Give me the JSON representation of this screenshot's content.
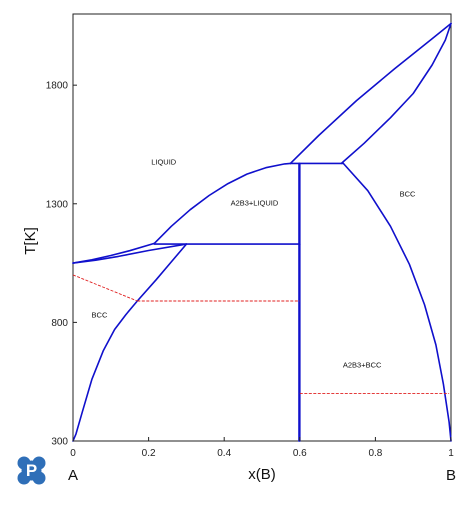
{
  "app": {
    "colors": {
      "boundary": "#1010cc",
      "tieline": "#e02020",
      "axis": "#222222",
      "logo": "#2f6fb8"
    },
    "logo_letter": "P",
    "logo_icon": "pandat-logo-icon"
  },
  "chart_data": {
    "type": "line",
    "title": "",
    "xlabel": "x(B)",
    "ylabel": "T[K]",
    "xlim": [
      0,
      1
    ],
    "ylim": [
      300,
      2100
    ],
    "grid": false,
    "x_ticks": [
      {
        "value": 0,
        "label": "0"
      },
      {
        "value": 0.2,
        "label": "0.2"
      },
      {
        "value": 0.4,
        "label": "0.4"
      },
      {
        "value": 0.6,
        "label": "0.6"
      },
      {
        "value": 0.8,
        "label": "0.8"
      },
      {
        "value": 1,
        "label": "1"
      }
    ],
    "y_ticks": [
      {
        "value": 300,
        "label": "300"
      },
      {
        "value": 800,
        "label": "800"
      },
      {
        "value": 1300,
        "label": "1300"
      },
      {
        "value": 1800,
        "label": "1800"
      }
    ],
    "component_labels": {
      "left": "A",
      "right": "B"
    },
    "regions": [
      {
        "label": "LIQUID",
        "x": 0.24,
        "y": 1465
      },
      {
        "label": "A2B3+LIQUID",
        "x": 0.48,
        "y": 1293
      },
      {
        "label": "BCC",
        "x": 0.885,
        "y": 1330
      },
      {
        "label": "BCC",
        "x": 0.07,
        "y": 820
      },
      {
        "label": "A2B3+BCC",
        "x": 0.765,
        "y": 610
      }
    ],
    "series": [
      {
        "kind": "boundary",
        "points": [
          [
            0,
            1050
          ],
          [
            0.05,
            1064
          ],
          [
            0.1,
            1082
          ],
          [
            0.15,
            1102
          ],
          [
            0.215,
            1133
          ]
        ]
      },
      {
        "kind": "boundary",
        "points": [
          [
            0,
            1050
          ],
          [
            0.06,
            1062
          ],
          [
            0.12,
            1078
          ],
          [
            0.2,
            1103
          ],
          [
            0.3,
            1130
          ]
        ]
      },
      {
        "kind": "boundary",
        "points": [
          [
            0.215,
            1133
          ],
          [
            0.26,
            1205
          ],
          [
            0.31,
            1275
          ],
          [
            0.36,
            1335
          ],
          [
            0.41,
            1385
          ],
          [
            0.46,
            1425
          ],
          [
            0.51,
            1452
          ],
          [
            0.56,
            1468
          ],
          [
            0.575,
            1470
          ]
        ]
      },
      {
        "kind": "boundary",
        "points": [
          [
            0.575,
            1470
          ],
          [
            0.65,
            1588
          ],
          [
            0.75,
            1735
          ],
          [
            0.85,
            1868
          ],
          [
            0.95,
            1996
          ],
          [
            1,
            2060
          ]
        ]
      },
      {
        "kind": "boundary",
        "points": [
          [
            0.71,
            1470
          ],
          [
            0.77,
            1555
          ],
          [
            0.84,
            1663
          ],
          [
            0.9,
            1765
          ],
          [
            0.95,
            1885
          ],
          [
            0.985,
            1990
          ],
          [
            1,
            2060
          ]
        ]
      },
      {
        "kind": "boundary",
        "points": [
          [
            0.715,
            1470
          ],
          [
            0.78,
            1355
          ],
          [
            0.84,
            1205
          ],
          [
            0.89,
            1045
          ],
          [
            0.93,
            875
          ],
          [
            0.96,
            705
          ],
          [
            0.98,
            540
          ],
          [
            0.995,
            380
          ],
          [
            1,
            300
          ]
        ]
      },
      {
        "kind": "boundary",
        "points": [
          [
            0.3,
            1130
          ],
          [
            0.26,
            1055
          ],
          [
            0.22,
            980
          ],
          [
            0.17,
            890
          ],
          [
            0.14,
            833
          ],
          [
            0.11,
            770
          ],
          [
            0.08,
            680
          ],
          [
            0.05,
            560
          ],
          [
            0.025,
            425
          ],
          [
            0.008,
            330
          ],
          [
            0,
            300
          ]
        ]
      },
      {
        "kind": "boundary",
        "points": [
          [
            0.215,
            1130
          ],
          [
            0.6,
            1130
          ]
        ]
      },
      {
        "kind": "boundary",
        "points": [
          [
            0.575,
            1470
          ],
          [
            0.715,
            1470
          ]
        ]
      },
      {
        "kind": "boundary",
        "points": [
          [
            0.6,
            300
          ],
          [
            0.6,
            1470
          ]
        ]
      },
      {
        "kind": "boundary",
        "points": [
          [
            0.598,
            300
          ],
          [
            0.598,
            1470
          ]
        ]
      },
      {
        "kind": "tieline",
        "points": [
          [
            0,
            1000
          ],
          [
            0.17,
            890
          ]
        ]
      },
      {
        "kind": "tieline",
        "points": [
          [
            0.17,
            890
          ],
          [
            0.6,
            890
          ]
        ]
      },
      {
        "kind": "tieline",
        "points": [
          [
            0.6,
            500
          ],
          [
            0.995,
            500
          ]
        ]
      }
    ]
  }
}
